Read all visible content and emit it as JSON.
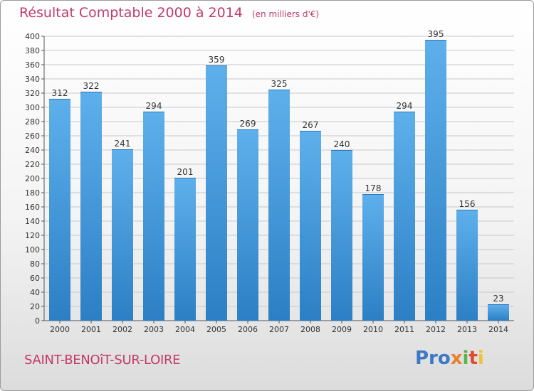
{
  "header": {
    "title": "Résultat Comptable 2000 à 2014",
    "subtitle": "(en milliers d'€)"
  },
  "footer": {
    "place": "SAINT-BENOîT-SUR-LOIRE",
    "logo_parts": [
      "Pro",
      "x",
      "i",
      "t",
      "i"
    ]
  },
  "colors": {
    "title": "#c23a6b",
    "bar_top": "#5eb0ec",
    "bar_bottom": "#2c7fc4",
    "grid": "#c8c8c8"
  },
  "chart_data": {
    "type": "bar",
    "title": "Résultat Comptable 2000 à 2014",
    "subtitle": "(en milliers d'€)",
    "categories": [
      "2000",
      "2001",
      "2002",
      "2003",
      "2004",
      "2005",
      "2006",
      "2007",
      "2008",
      "2009",
      "2010",
      "2011",
      "2012",
      "2013",
      "2014"
    ],
    "values": [
      312,
      322,
      241,
      294,
      201,
      359,
      269,
      325,
      267,
      240,
      178,
      294,
      395,
      156,
      23
    ],
    "xlabel": "",
    "ylabel": "",
    "ylim": [
      0,
      400
    ],
    "ytick_step": 20,
    "grid": true
  }
}
